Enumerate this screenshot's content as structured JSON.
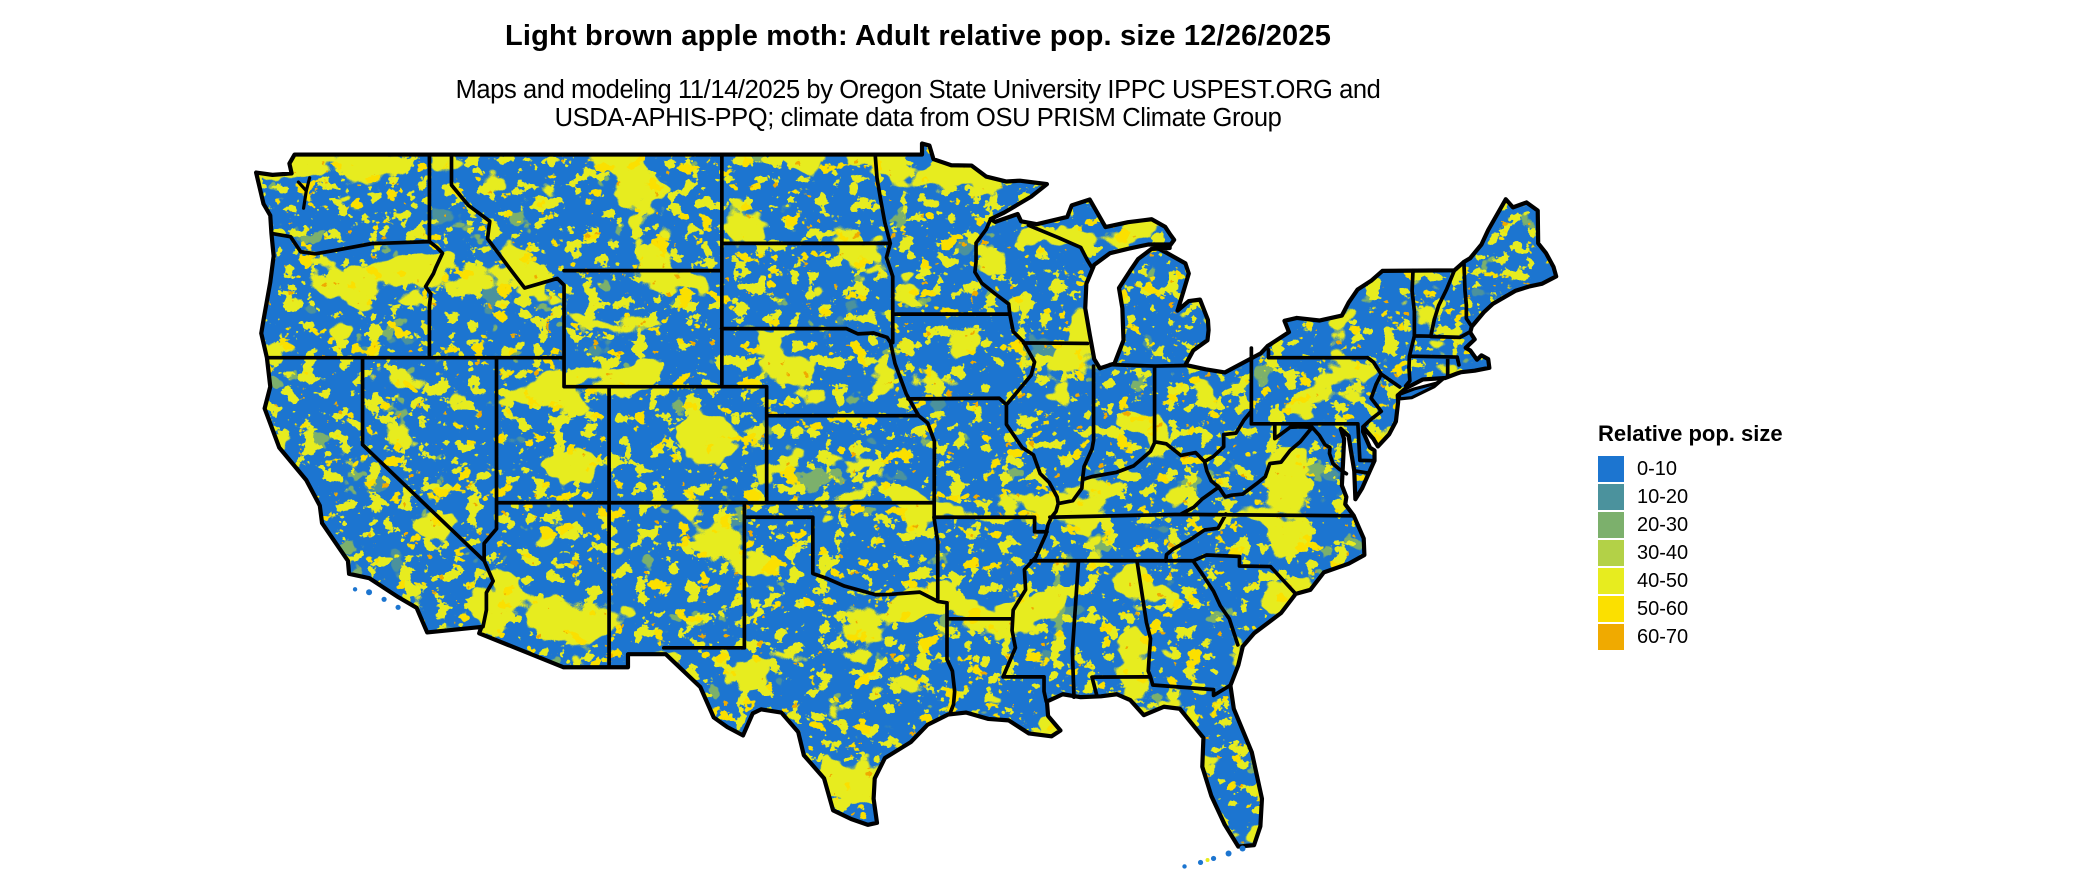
{
  "figure": {
    "title": "Light brown apple moth: Adult relative pop. size 12/26/2025",
    "subtitle_line1": "Maps and modeling 11/14/2025 by Oregon State University IPPC USPEST.ORG and",
    "subtitle_line2": "USDA-APHIS-PPQ; climate data from OSU PRISM Climate Group"
  },
  "legend": {
    "title": "Relative pop. size",
    "items": [
      {
        "label": "0-10",
        "color": "#1C75D0"
      },
      {
        "label": "10-20",
        "color": "#4B929D"
      },
      {
        "label": "20-30",
        "color": "#7CB06C"
      },
      {
        "label": "30-40",
        "color": "#B3D147"
      },
      {
        "label": "40-50",
        "color": "#E7EC1F"
      },
      {
        "label": "50-60",
        "color": "#FBE000"
      },
      {
        "label": "60-70",
        "color": "#F0AA00"
      }
    ]
  },
  "map": {
    "region": "Contiguous United States",
    "base_color": "#1C75D0",
    "border_color": "#000000",
    "background_color": "#FFFFFF"
  },
  "chart_data": {
    "type": "heatmap",
    "title": "Light brown apple moth: Adult relative pop. size 12/26/2025",
    "legend_title": "Relative pop. size",
    "legend_position": "right",
    "region": "Contiguous United States with state boundaries",
    "classes": [
      {
        "range": "0-10",
        "color": "#1C75D0"
      },
      {
        "range": "10-20",
        "color": "#4B929D"
      },
      {
        "range": "20-30",
        "color": "#7CB06C"
      },
      {
        "range": "30-40",
        "color": "#B3D147"
      },
      {
        "range": "40-50",
        "color": "#E7EC1F"
      },
      {
        "range": "50-60",
        "color": "#FBE000"
      },
      {
        "range": "60-70",
        "color": "#F0AA00"
      }
    ],
    "notes": "Map is dominated by the 0-10 class (blue); speckled bands of the 30-60 classes (yellow/gold) trace mountain ranges in the West, the northern plains, the Midwest and the South; occasional 10-30 (teal/green) patches and rare 60-70 (orange) specks."
  }
}
